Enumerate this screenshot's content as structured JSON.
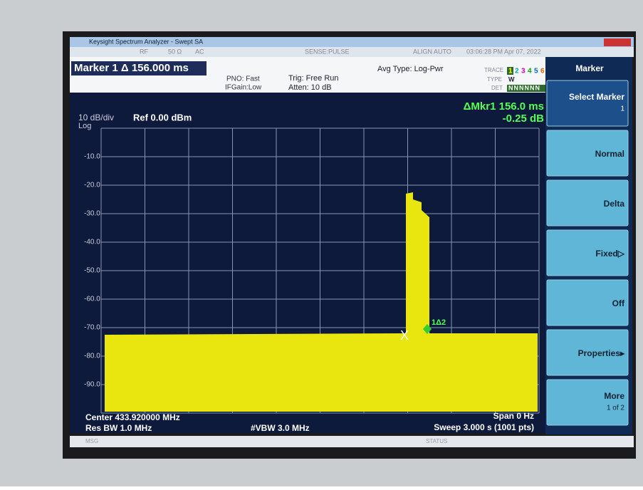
{
  "window": {
    "title": "Keysight Spectrum Analyzer - Swept SA"
  },
  "status_row": {
    "rf": "RF",
    "impedance": "50 Ω",
    "coupling": "AC",
    "sense": "SENSE:PULSE",
    "align": "ALIGN AUTO",
    "datetime": "03:06:28 PM Apr 07, 2022"
  },
  "header": {
    "marker": "Marker 1 Δ 156.000 ms",
    "pno": "PNO: Fast",
    "ifgain": "IFGain:Low",
    "trig": "Trig: Free Run",
    "atten": "Atten: 10 dB",
    "avg_type": "Avg Type: Log-Pwr",
    "trace_label": "TRACE",
    "trace_numbers": [
      "1",
      "2",
      "3",
      "4",
      "5",
      "6"
    ],
    "type_label": "TYPE",
    "type_value": "W",
    "det_label": "DET",
    "det_values": "NNNNNN"
  },
  "display": {
    "scale": "10 dB/div",
    "scale_type": "Log",
    "ref": "Ref 0.00 dBm",
    "delta_marker": "ΔMkr1 156.0 ms",
    "delta_value": "-0.25 dB",
    "y_labels": [
      "-10.0",
      "-20.0",
      "-30.0",
      "-40.0",
      "-50.0",
      "-60.0",
      "-70.0",
      "-80.0",
      "-90.0"
    ],
    "marker_label": "1Δ2"
  },
  "footer": {
    "center": "Center 433.920000 MHz",
    "res_bw": "Res BW 1.0 MHz",
    "vbw": "#VBW 3.0 MHz",
    "span": "Span 0 Hz",
    "sweep": "Sweep  3.000 s (1001 pts)"
  },
  "status_bar": {
    "msg": "MSG",
    "status": "STATUS"
  },
  "softkeys": {
    "title": "Marker",
    "keys": [
      {
        "label": "Select Marker",
        "sub": "1"
      },
      {
        "label": "Normal"
      },
      {
        "label": "Delta"
      },
      {
        "label": "Fixed▷"
      },
      {
        "label": "Off"
      },
      {
        "label": "Properties▸"
      },
      {
        "label": "More",
        "sub": "1 of 2"
      }
    ]
  }
}
